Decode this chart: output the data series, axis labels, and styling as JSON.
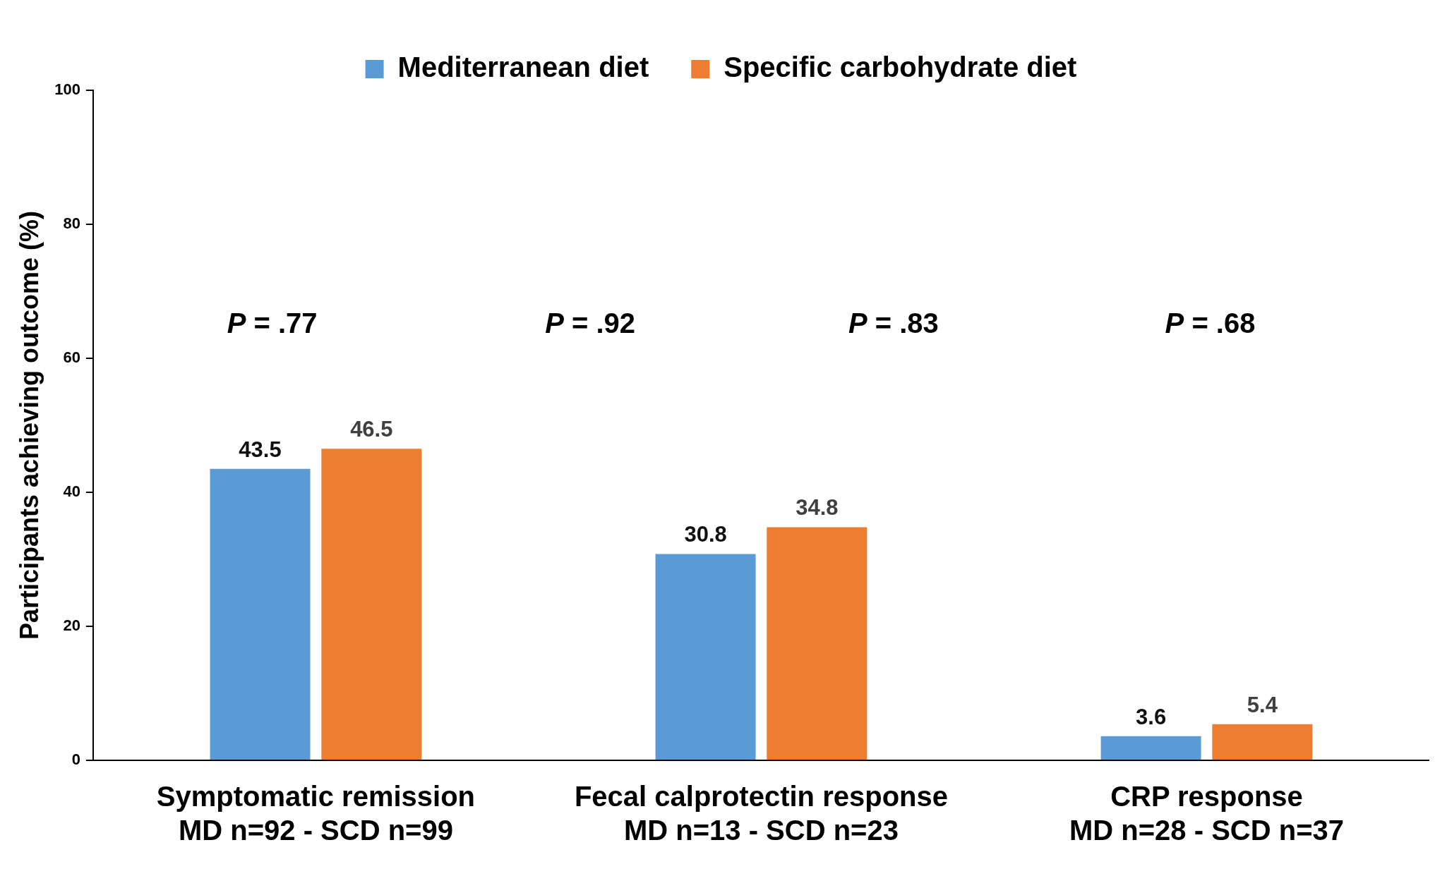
{
  "chart_data": {
    "type": "bar",
    "ylabel": "Participants achieving outcome (%)",
    "categories": [
      "Symptomatic remission\nMD n=92 - SCD n=99",
      "Fecal calprotectin response\nMD n=13 - SCD n=23",
      "CRP response\nMD n=28 - SCD n=37"
    ],
    "series": [
      {
        "name": "Mediterranean diet",
        "color": "#5b9bd5",
        "values": [
          43.5,
          30.8,
          3.6
        ]
      },
      {
        "name": "Specific carbohydrate diet",
        "color": "#ed7d31",
        "values": [
          46.5,
          34.8,
          5.4
        ]
      }
    ],
    "ylim": [
      0,
      100
    ],
    "yticks": [
      0,
      20,
      40,
      60,
      80,
      100
    ],
    "grid": false,
    "legend": "top",
    "data_labels": true,
    "annotations": [
      "P = .77",
      "P = .92",
      "P = .83",
      "P = .68"
    ]
  }
}
